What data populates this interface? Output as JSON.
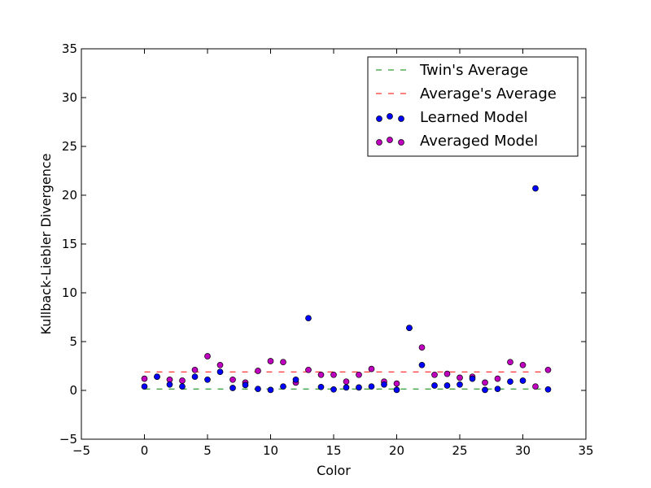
{
  "chart_data": {
    "type": "scatter",
    "title": "",
    "xlabel": "Color",
    "ylabel": "Kullback-Liebler Divergence",
    "xlim": [
      -5,
      35
    ],
    "ylim": [
      -5,
      35
    ],
    "xticks": [
      -5,
      0,
      5,
      10,
      15,
      20,
      25,
      30,
      35
    ],
    "yticks": [
      -5,
      0,
      5,
      10,
      15,
      20,
      25,
      30,
      35
    ],
    "xtick_labels": [
      "−5",
      "0",
      "5",
      "10",
      "15",
      "20",
      "25",
      "30",
      "35"
    ],
    "ytick_labels": [
      "−5",
      "0",
      "5",
      "10",
      "15",
      "20",
      "25",
      "30",
      "35"
    ],
    "grid": false,
    "legend_position": "top-right",
    "lines": [
      {
        "name": "Twin's Average",
        "style": "dashed",
        "color": "#008000",
        "x": [
          0,
          32
        ],
        "y": [
          0.15,
          0.15
        ]
      },
      {
        "name": "Average's Average",
        "style": "dashed",
        "color": "#ff0000",
        "x": [
          0,
          32
        ],
        "y": [
          1.9,
          1.9
        ]
      }
    ],
    "series": [
      {
        "name": "Learned Model",
        "color": "#0000ff",
        "x": [
          0,
          1,
          2,
          3,
          4,
          5,
          6,
          7,
          8,
          9,
          10,
          11,
          12,
          13,
          14,
          15,
          16,
          17,
          18,
          19,
          20,
          21,
          22,
          23,
          24,
          25,
          26,
          27,
          28,
          29,
          30,
          31,
          32
        ],
        "y": [
          0.4,
          1.4,
          0.6,
          0.4,
          1.4,
          1.1,
          1.9,
          0.25,
          0.55,
          0.15,
          0.05,
          0.4,
          1.1,
          7.4,
          0.35,
          0.1,
          0.3,
          0.3,
          0.4,
          0.6,
          0.05,
          6.4,
          2.6,
          0.5,
          0.5,
          0.6,
          1.2,
          0.05,
          0.15,
          0.9,
          1.0,
          20.7,
          0.1
        ]
      },
      {
        "name": "Averaged Model",
        "color": "#bf00bf",
        "x": [
          0,
          1,
          2,
          3,
          4,
          5,
          6,
          7,
          8,
          9,
          10,
          11,
          12,
          13,
          14,
          15,
          16,
          17,
          18,
          19,
          20,
          21,
          22,
          23,
          24,
          25,
          26,
          27,
          28,
          29,
          30,
          31,
          32
        ],
        "y": [
          1.2,
          1.4,
          1.1,
          1.0,
          2.1,
          3.5,
          2.6,
          1.1,
          0.8,
          2.0,
          3.0,
          2.9,
          0.8,
          2.1,
          1.6,
          1.6,
          0.9,
          1.6,
          2.2,
          0.9,
          0.7,
          6.4,
          4.4,
          1.6,
          1.7,
          1.3,
          1.4,
          0.8,
          1.2,
          2.9,
          2.6,
          0.4,
          2.1
        ]
      }
    ]
  }
}
